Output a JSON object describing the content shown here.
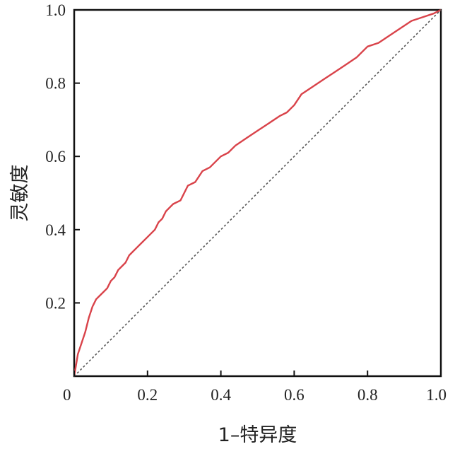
{
  "chart_data": {
    "type": "line",
    "title": "",
    "xlabel": "1–特异度",
    "ylabel": "灵敏度",
    "xlim": [
      0,
      1
    ],
    "ylim": [
      0,
      1
    ],
    "x_ticks": [
      "0",
      "0.2",
      "0.4",
      "0.6",
      "0.8",
      "1.0"
    ],
    "y_ticks": [
      "0.2",
      "0.4",
      "0.6",
      "0.8",
      "1.0"
    ],
    "grid": false,
    "legend": "none",
    "series": [
      {
        "color": "#d9434a",
        "style": "solid",
        "points": [
          [
            0.0,
            0.0
          ],
          [
            0.005,
            0.03
          ],
          [
            0.01,
            0.06
          ],
          [
            0.02,
            0.09
          ],
          [
            0.03,
            0.12
          ],
          [
            0.04,
            0.16
          ],
          [
            0.05,
            0.19
          ],
          [
            0.06,
            0.21
          ],
          [
            0.07,
            0.22
          ],
          [
            0.08,
            0.23
          ],
          [
            0.09,
            0.24
          ],
          [
            0.1,
            0.26
          ],
          [
            0.11,
            0.27
          ],
          [
            0.12,
            0.29
          ],
          [
            0.13,
            0.3
          ],
          [
            0.14,
            0.31
          ],
          [
            0.15,
            0.33
          ],
          [
            0.16,
            0.34
          ],
          [
            0.17,
            0.35
          ],
          [
            0.18,
            0.36
          ],
          [
            0.2,
            0.38
          ],
          [
            0.22,
            0.4
          ],
          [
            0.23,
            0.42
          ],
          [
            0.24,
            0.43
          ],
          [
            0.25,
            0.45
          ],
          [
            0.26,
            0.46
          ],
          [
            0.27,
            0.47
          ],
          [
            0.29,
            0.48
          ],
          [
            0.3,
            0.5
          ],
          [
            0.31,
            0.52
          ],
          [
            0.33,
            0.53
          ],
          [
            0.35,
            0.56
          ],
          [
            0.37,
            0.57
          ],
          [
            0.4,
            0.6
          ],
          [
            0.42,
            0.61
          ],
          [
            0.44,
            0.63
          ],
          [
            0.47,
            0.65
          ],
          [
            0.5,
            0.67
          ],
          [
            0.53,
            0.69
          ],
          [
            0.56,
            0.71
          ],
          [
            0.58,
            0.72
          ],
          [
            0.6,
            0.74
          ],
          [
            0.62,
            0.77
          ],
          [
            0.65,
            0.79
          ],
          [
            0.68,
            0.81
          ],
          [
            0.71,
            0.83
          ],
          [
            0.74,
            0.85
          ],
          [
            0.77,
            0.87
          ],
          [
            0.8,
            0.9
          ],
          [
            0.83,
            0.91
          ],
          [
            0.86,
            0.93
          ],
          [
            0.89,
            0.95
          ],
          [
            0.92,
            0.97
          ],
          [
            0.95,
            0.98
          ],
          [
            0.98,
            0.99
          ],
          [
            1.0,
            1.0
          ]
        ]
      },
      {
        "color": "#555555",
        "style": "dotted",
        "points": [
          [
            0,
            0
          ],
          [
            1,
            1
          ]
        ]
      }
    ]
  }
}
